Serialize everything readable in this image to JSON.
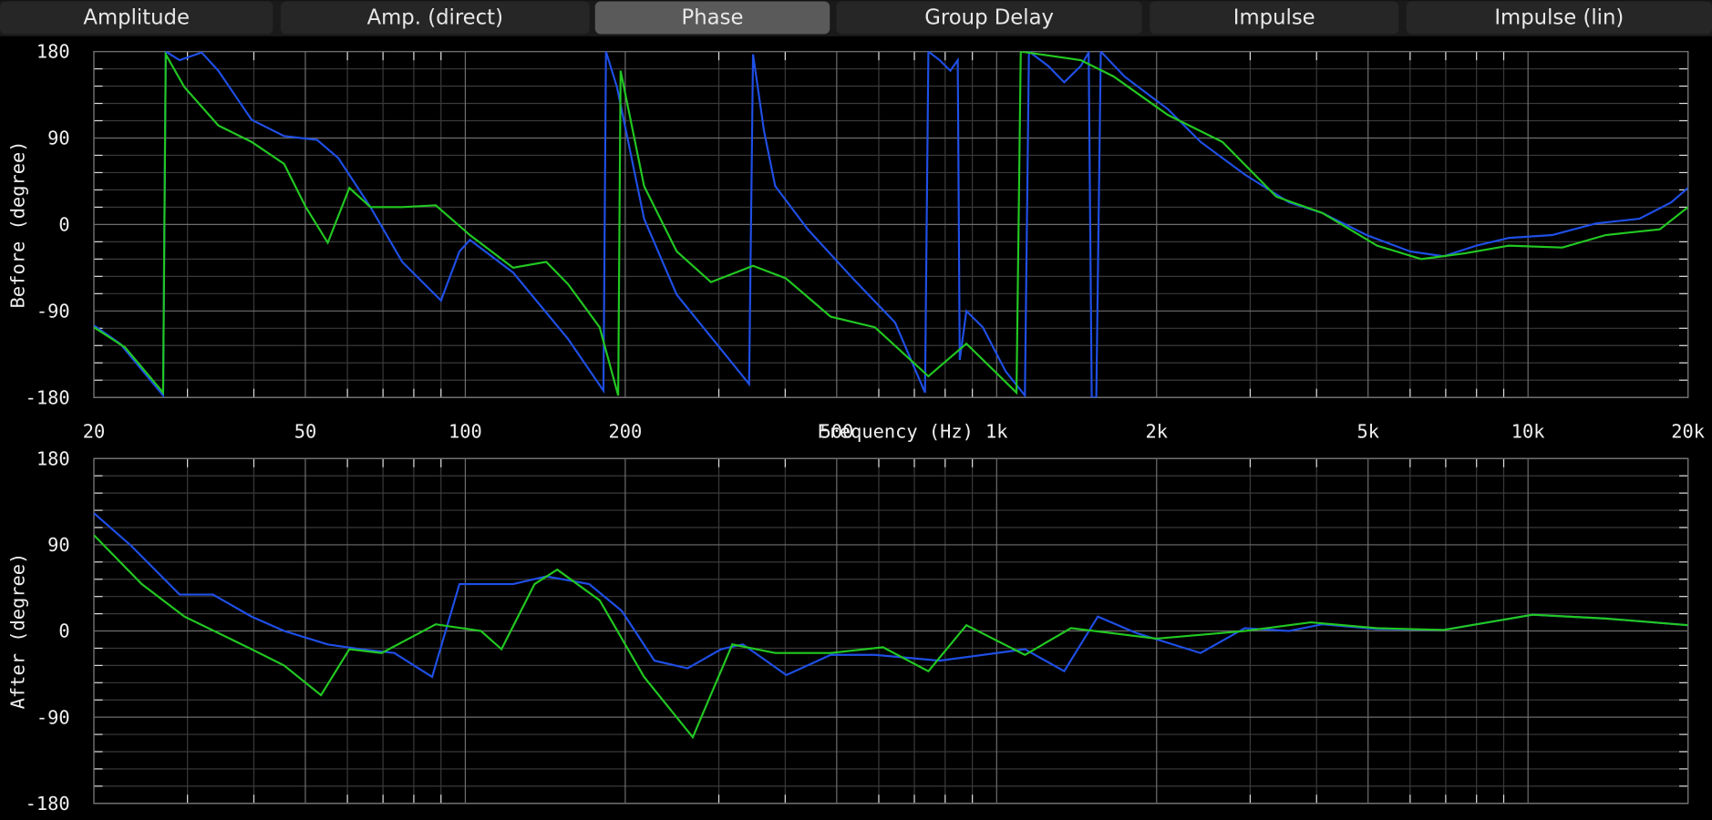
{
  "tabs": [
    "Amplitude",
    "Amp. (direct)",
    "Phase",
    "Group Delay",
    "Impulse",
    "Impulse (lin)"
  ],
  "active_tab": 2,
  "chart_data": [
    {
      "type": "line",
      "ylabel": "Before (degree)",
      "xlabel": "Frequency (Hz)",
      "log_x": true,
      "grid": true,
      "xlim": [
        20,
        20000
      ],
      "ylim": [
        -180,
        180
      ],
      "xticks": [
        20,
        50,
        100,
        200,
        500,
        {
          "value": 1000,
          "label": "1k"
        },
        {
          "value": 2000,
          "label": "2k"
        },
        {
          "value": 5000,
          "label": "5k"
        },
        {
          "value": 10000,
          "label": "10k"
        },
        {
          "value": 20000,
          "label": "20k"
        }
      ],
      "yticks": [
        -180,
        -90,
        0,
        90,
        180
      ],
      "xticks_minor": [
        30,
        40,
        60,
        70,
        80,
        90,
        300,
        400,
        600,
        700,
        800,
        900,
        3000,
        4000,
        6000,
        7000,
        8000,
        9000
      ],
      "yticks_minor": [
        -162,
        -144,
        -126,
        -108,
        -72,
        -54,
        -36,
        -18,
        18,
        36,
        54,
        72,
        108,
        126,
        144,
        162
      ],
      "series": [
        {
          "color": "#1f4fe6",
          "x": [
            20,
            22.4,
            27,
            27.3,
            29,
            31.9,
            34.3,
            39.6,
            45.6,
            52.6,
            57.7,
            66.3,
            76.1,
            90,
            97.5,
            102,
            123,
            156,
            182,
            184,
            193,
            217,
            250,
            303,
            342,
            348,
            365,
            383,
            441,
            536,
            644,
            733,
            744,
            781,
            818,
            845,
            852,
            877,
            942,
            1040,
            1130,
            1150,
            1250,
            1340,
            1440,
            1490,
            1510,
            1540,
            1570,
            1740,
            2100,
            2420,
            2930,
            3550,
            4100,
            4970,
            6000,
            6930,
            7990,
            9200,
            11100,
            13400,
            16200,
            18600,
            20000
          ],
          "values": [
            -105,
            -124,
            -178,
            180,
            171,
            179,
            160,
            109,
            92,
            88,
            69,
            18,
            -39,
            -79,
            -28,
            -16,
            -50,
            -119,
            -173,
            180,
            143,
            6,
            -73,
            -130,
            -166,
            177,
            97,
            40,
            -5,
            -56,
            -102,
            -175,
            180,
            171,
            160,
            171,
            -141,
            -90,
            -107,
            -153,
            -178,
            180,
            165,
            148,
            165,
            179,
            -180,
            -180,
            180,
            154,
            120,
            86,
            52,
            23,
            12,
            -11,
            -28,
            -33,
            -22,
            -14,
            -11,
            1,
            6,
            23,
            38
          ]
        },
        {
          "color": "#22c822",
          "x": [
            20,
            22.9,
            27,
            27.3,
            29.6,
            34.3,
            39.6,
            45.6,
            50.1,
            55.1,
            60.5,
            66.3,
            76.1,
            88,
            102,
            123,
            142,
            156,
            179,
            194,
            196,
            217,
            250,
            290,
            348,
            401,
            487,
            590,
            744,
            877,
            1090,
            1110,
            1440,
            1660,
            2100,
            2660,
            3360,
            4100,
            5200,
            6300,
            7600,
            9200,
            11600,
            14000,
            17700,
            20000
          ],
          "values": [
            -107,
            -128,
            -175,
            177,
            143,
            103,
            86,
            63,
            18,
            -19,
            38,
            18,
            18,
            20,
            -11,
            -45,
            -39,
            -62,
            -107,
            -178,
            160,
            40,
            -28,
            -60,
            -43,
            -56,
            -96,
            -107,
            -158,
            -124,
            -175,
            180,
            171,
            154,
            114,
            86,
            29,
            12,
            -22,
            -36,
            -30,
            -22,
            -24,
            -11,
            -5,
            18
          ]
        }
      ]
    },
    {
      "type": "line",
      "ylabel": "After (degree)",
      "log_x": true,
      "grid": true,
      "xlim": [
        20,
        20000
      ],
      "ylim": [
        -180,
        180
      ],
      "xticks": [
        20,
        50,
        100,
        200,
        500,
        1000,
        2000,
        5000,
        10000,
        20000
      ],
      "yticks": [
        -180,
        -90,
        0,
        90,
        180
      ],
      "xticks_minor": [
        30,
        40,
        60,
        70,
        80,
        90,
        300,
        400,
        600,
        700,
        800,
        900,
        3000,
        4000,
        6000,
        7000,
        8000,
        9000
      ],
      "yticks_minor": [
        -162,
        -144,
        -126,
        -108,
        -72,
        -54,
        -36,
        -18,
        18,
        36,
        54,
        72,
        108,
        126,
        144,
        162
      ],
      "series": [
        {
          "color": "#1f4fe6",
          "x": [
            20,
            23.5,
            29,
            33.5,
            39.6,
            45.6,
            55.1,
            63.6,
            73.5,
            86.6,
            97.5,
            107,
            123,
            142,
            171,
            197,
            227,
            262,
            303,
            333,
            402,
            487,
            590,
            781,
            942,
            1130,
            1340,
            1550,
            1830,
            2420,
            2930,
            3550,
            4100,
            5200,
            6930,
            10200,
            14000,
            20000
          ],
          "values": [
            123,
            89,
            38,
            38,
            15,
            0,
            -14,
            -19,
            -23,
            -48,
            49,
            49,
            49,
            57,
            49,
            21,
            -31,
            -39,
            -19,
            -14,
            -46,
            -25,
            -25,
            -31,
            -25,
            -19,
            -42,
            15,
            -2,
            -23,
            3,
            0,
            7,
            2,
            1,
            17,
            13,
            6
          ]
        },
        {
          "color": "#22c822",
          "x": [
            20,
            24.6,
            29.6,
            39.6,
            45.6,
            53.5,
            60.5,
            69.6,
            88,
            107,
            117,
            135,
            149,
            179,
            217,
            268,
            318,
            383,
            487,
            611,
            744,
            877,
            1130,
            1380,
            2000,
            2930,
            3900,
            5200,
            6930,
            10200,
            14000,
            20000
          ],
          "values": [
            100,
            49,
            15,
            -19,
            -36,
            -67,
            -19,
            -23,
            7,
            0,
            -19,
            49,
            64,
            32,
            -48,
            -111,
            -14,
            -23,
            -23,
            -17,
            -42,
            6,
            -25,
            3,
            -8,
            0,
            9,
            3,
            1,
            17,
            13,
            6
          ]
        }
      ]
    }
  ]
}
